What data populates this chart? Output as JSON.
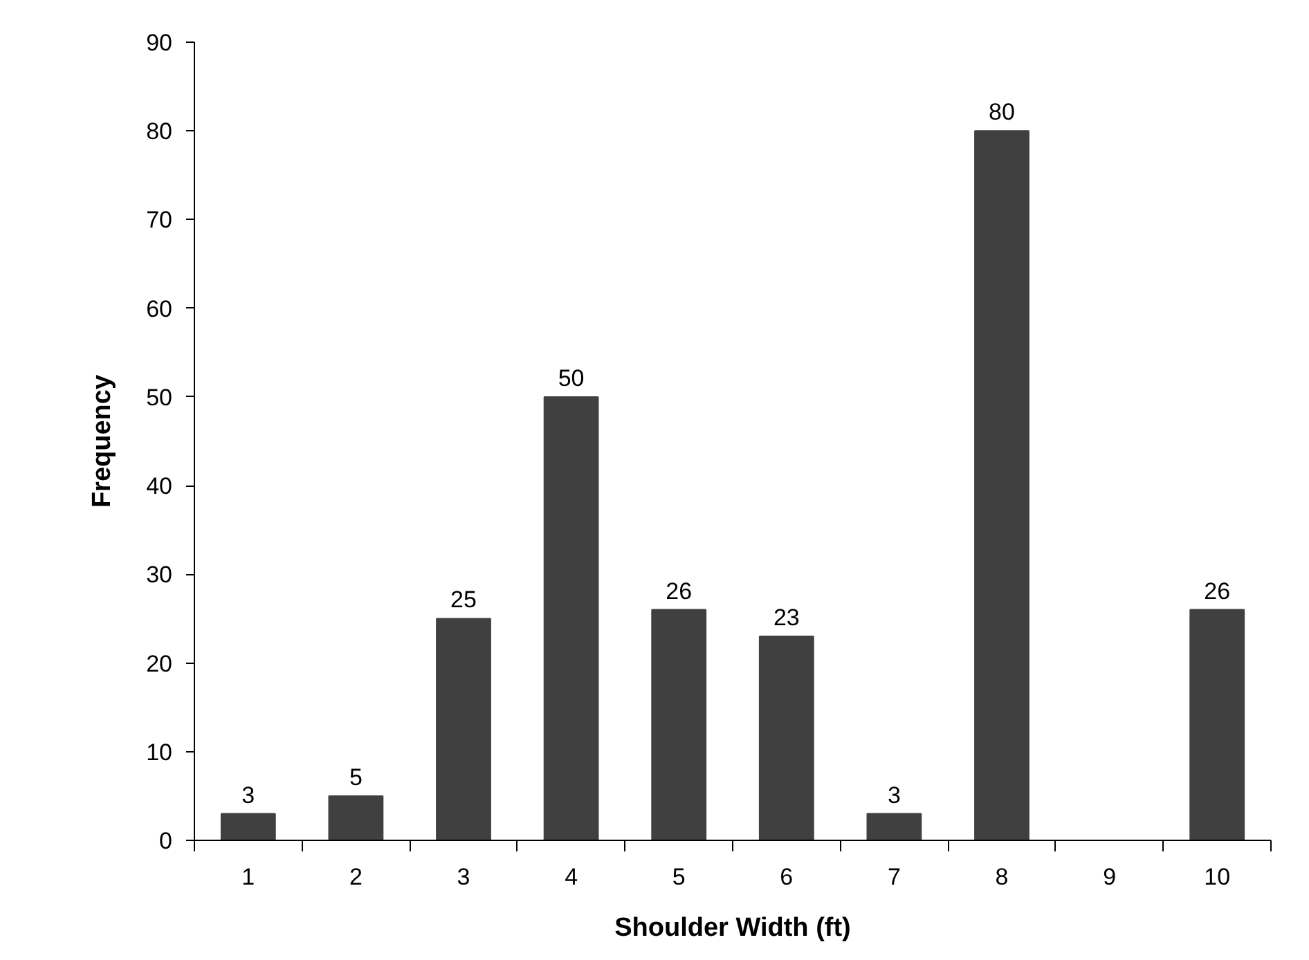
{
  "chart_data": {
    "type": "bar",
    "xlabel": "Shoulder Width (ft)",
    "ylabel": "Frequency",
    "categories": [
      "1",
      "2",
      "3",
      "4",
      "5",
      "6",
      "7",
      "8",
      "9",
      "10"
    ],
    "values": [
      3,
      5,
      25,
      50,
      26,
      23,
      3,
      80,
      0,
      26
    ],
    "value_labels": [
      "3",
      "5",
      "25",
      "50",
      "26",
      "23",
      "3",
      "80",
      null,
      "26"
    ],
    "color": "#404040",
    "ylim": [
      0,
      90
    ],
    "yticks": [
      0,
      10,
      20,
      30,
      40,
      50,
      60,
      70,
      80,
      90
    ],
    "grid": false
  }
}
